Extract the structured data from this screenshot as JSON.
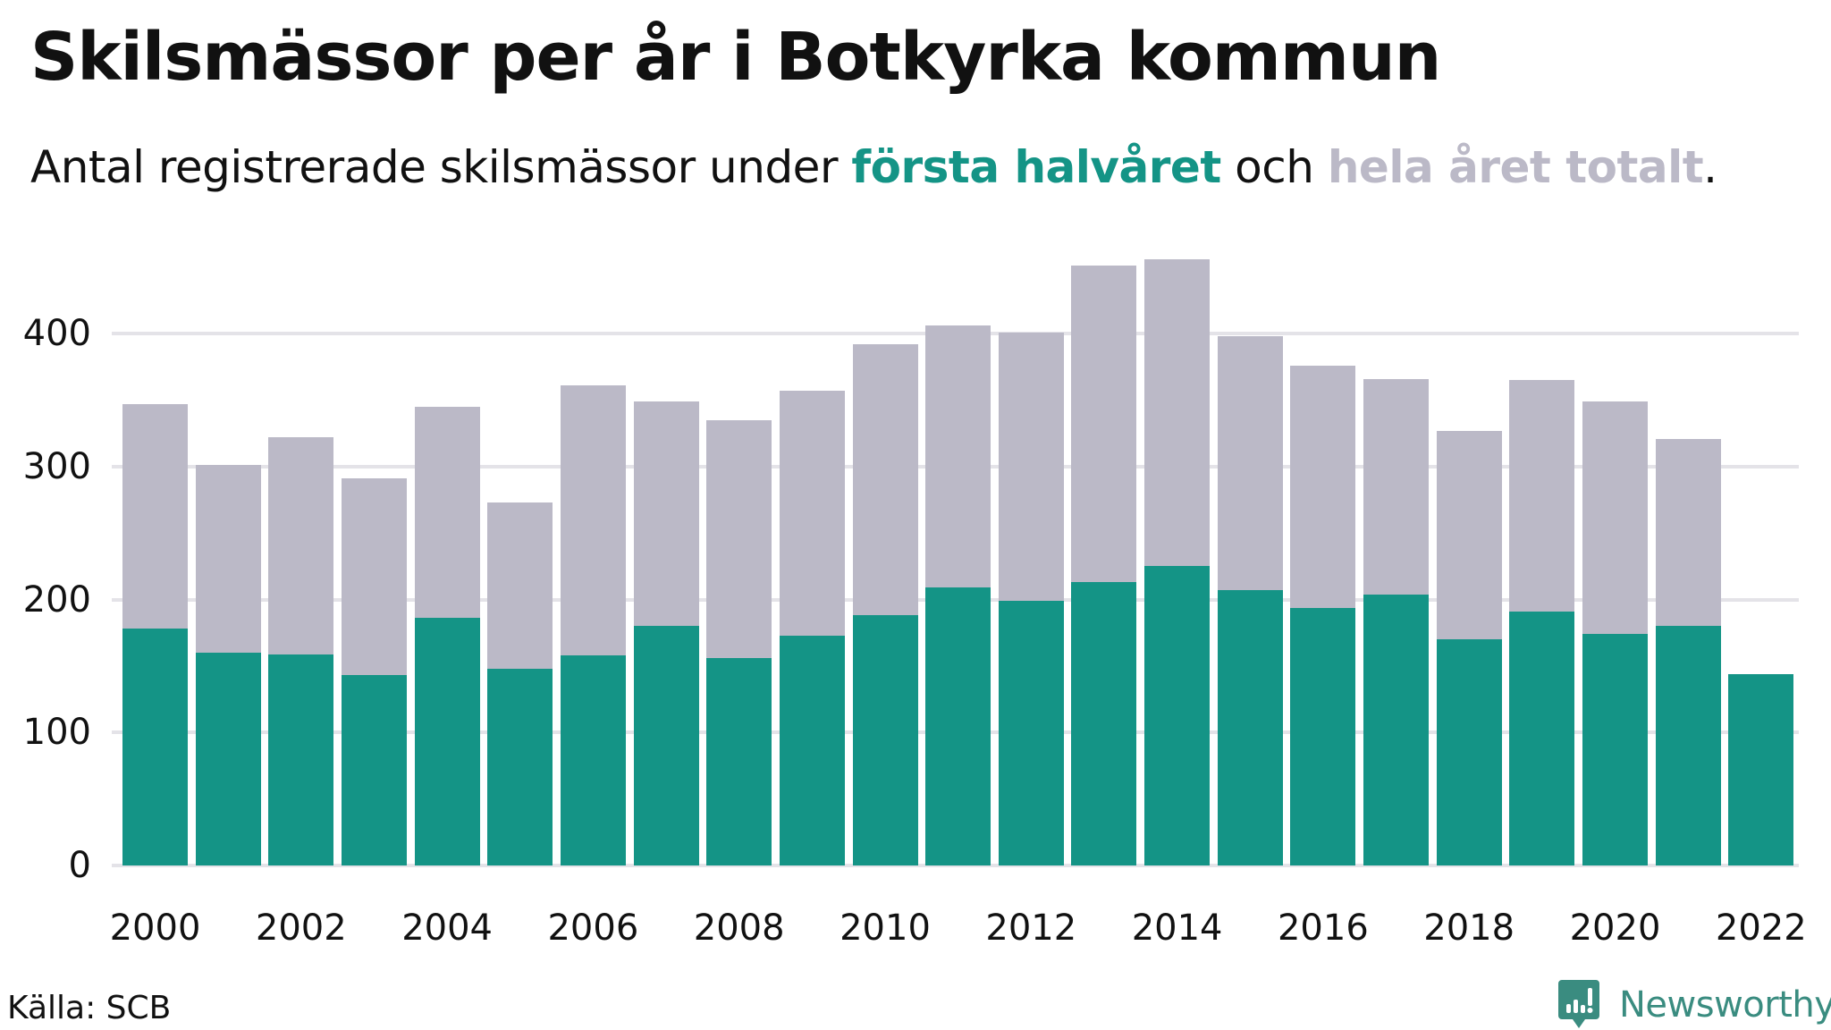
{
  "header": {
    "title": "Skilsmässor per år i Botkyrka kommun",
    "subtitle_prefix": "Antal registrerade skilsmässor under ",
    "subtitle_highlight_a": "första halvåret",
    "subtitle_middle": " och ",
    "subtitle_highlight_b": "hela året totalt",
    "subtitle_suffix": "."
  },
  "colors": {
    "first_half": "#149486",
    "full_year": "#bbb9c7",
    "gridline": "#e4e3e8",
    "brand": "#3a8c80"
  },
  "footer": {
    "source": "Källa: SCB",
    "brand": "Newsworthy"
  },
  "chart_data": {
    "type": "bar",
    "title": "Skilsmässor per år i Botkyrka kommun",
    "subtitle": "Antal registrerade skilsmässor under första halvåret och hela året totalt.",
    "xlabel": "",
    "ylabel": "",
    "ylim": [
      0,
      460
    ],
    "yticks": [
      0,
      100,
      200,
      300,
      400
    ],
    "xtick_labels": [
      "2000",
      "2002",
      "2004",
      "2006",
      "2008",
      "2010",
      "2012",
      "2014",
      "2016",
      "2018",
      "2020",
      "2022"
    ],
    "grid": true,
    "legend": "inline in subtitle",
    "categories": [
      "2000",
      "2001",
      "2002",
      "2003",
      "2004",
      "2005",
      "2006",
      "2007",
      "2008",
      "2009",
      "2010",
      "2011",
      "2012",
      "2013",
      "2014",
      "2015",
      "2016",
      "2017",
      "2018",
      "2019",
      "2020",
      "2021",
      "2022"
    ],
    "series": [
      {
        "name": "hela året totalt",
        "color": "#bbb9c7",
        "values": [
          347,
          301,
          322,
          291,
          345,
          273,
          361,
          349,
          335,
          357,
          392,
          406,
          401,
          451,
          456,
          398,
          376,
          366,
          327,
          365,
          349,
          321,
          null
        ]
      },
      {
        "name": "första halvåret",
        "color": "#149486",
        "values": [
          178,
          160,
          159,
          143,
          186,
          148,
          158,
          180,
          156,
          173,
          188,
          209,
          199,
          213,
          225,
          207,
          194,
          204,
          170,
          191,
          174,
          180,
          144
        ]
      }
    ]
  }
}
